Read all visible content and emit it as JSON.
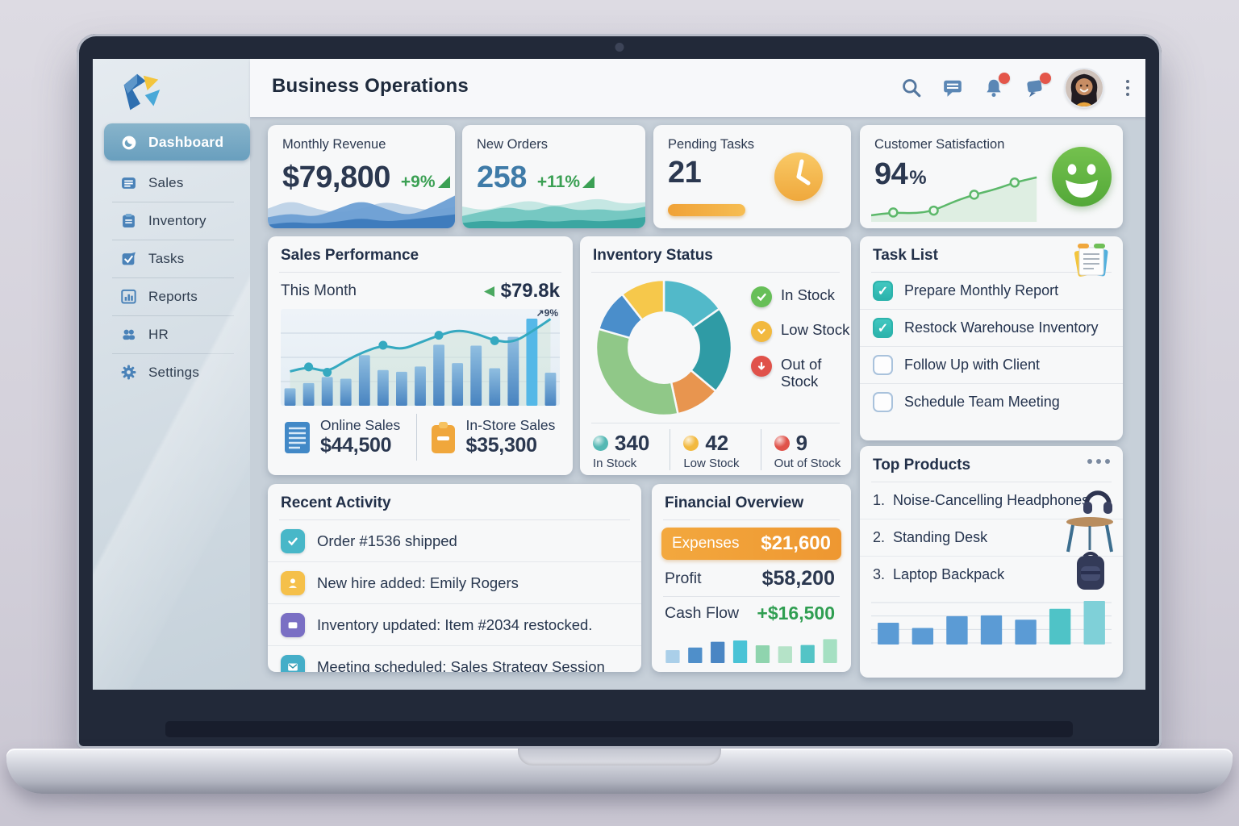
{
  "header": {
    "title": "Business Operations"
  },
  "sidebar": {
    "items": [
      {
        "label": "Dashboard",
        "icon": "dashboard-icon",
        "active": true
      },
      {
        "label": "Sales",
        "icon": "sales-icon",
        "active": false
      },
      {
        "label": "Inventory",
        "icon": "inventory-icon",
        "active": false
      },
      {
        "label": "Tasks",
        "icon": "tasks-icon",
        "active": false
      },
      {
        "label": "Reports",
        "icon": "reports-icon",
        "active": false
      },
      {
        "label": "HR",
        "icon": "hr-icon",
        "active": false
      },
      {
        "label": "Settings",
        "icon": "settings-icon",
        "active": false
      }
    ]
  },
  "kpis": {
    "revenue": {
      "label": "Monthly Revenue",
      "value": "$79,800",
      "delta": "+9%"
    },
    "orders": {
      "label": "New Orders",
      "value": "258",
      "delta": "+11%"
    },
    "pending": {
      "label": "Pending Tasks",
      "value": "21",
      "progress_pct": 56
    },
    "satisfaction": {
      "label": "Customer Satisfaction",
      "value": "94",
      "unit": "%"
    }
  },
  "sales_performance": {
    "title": "Sales Performance",
    "period_label": "This Month",
    "period_value": "$79.8k",
    "annotation": "9%",
    "online_label": "Online Sales",
    "online_value": "$44,500",
    "instore_label": "In-Store Sales",
    "instore_value": "$35,300"
  },
  "inventory_status": {
    "title": "Inventory Status",
    "legend": [
      {
        "label": "In Stock",
        "color": "#67bf58"
      },
      {
        "label": "Low Stock",
        "color": "#f2b93f"
      },
      {
        "label": "Out of Stock",
        "color": "#e0524a"
      }
    ],
    "stats": [
      {
        "value": "340",
        "label": "In Stock",
        "color": "#54b8b4"
      },
      {
        "value": "42",
        "label": "Low Stock",
        "color": "#f2b93f"
      },
      {
        "value": "9",
        "label": "Out of Stock",
        "color": "#e0524a"
      }
    ]
  },
  "task_list": {
    "title": "Task List",
    "items": [
      {
        "label": "Prepare Monthly Report",
        "done": true
      },
      {
        "label": "Restock Warehouse Inventory",
        "done": true
      },
      {
        "label": "Follow Up with Client",
        "done": false
      },
      {
        "label": "Schedule Team Meeting",
        "done": false
      }
    ]
  },
  "recent_activity": {
    "title": "Recent Activity",
    "items": [
      {
        "text": "Order #1536 shipped",
        "icon": "check-icon",
        "color": "#48b7c8"
      },
      {
        "text": "New hire added: Emily Rogers",
        "icon": "person-icon",
        "color": "#f5c04a"
      },
      {
        "text": "Inventory updated: Item #2034 restocked.",
        "icon": "box-icon",
        "color": "#7a6fc4"
      },
      {
        "text": "Meeting scheduled: Sales Strategy Session",
        "icon": "mail-icon",
        "color": "#45aec8"
      }
    ]
  },
  "financial": {
    "title": "Financial Overview",
    "expenses_label": "Expenses",
    "expenses_value": "$21,600",
    "profit_label": "Profit",
    "profit_value": "$58,200",
    "cashflow_label": "Cash Flow",
    "cashflow_value": "+$16,500"
  },
  "top_products": {
    "title": "Top Products",
    "items": [
      {
        "rank": "1.",
        "name": "Noise-Cancelling Headphones",
        "icon": "headphones-icon"
      },
      {
        "rank": "2.",
        "name": "Standing Desk",
        "icon": "desk-icon"
      },
      {
        "rank": "3.",
        "name": "Laptop Backpack",
        "icon": "backpack-icon"
      }
    ]
  },
  "chart_data": [
    {
      "id": "monthly-revenue-wave",
      "type": "area",
      "decorative": true,
      "layers": [
        {
          "color": "#b9cfe6",
          "opacity": 0.9,
          "points": [
            0.55,
            0.35,
            0.55,
            0.65,
            0.55,
            0.38,
            0.5,
            0.6,
            0.5
          ]
        },
        {
          "color": "#6d9fd4",
          "opacity": 0.95,
          "points": [
            0.75,
            0.65,
            0.75,
            0.55,
            0.35,
            0.55,
            0.72,
            0.52,
            0.25
          ]
        },
        {
          "color": "#3f7cbd",
          "opacity": 1,
          "points": [
            0.92,
            0.85,
            0.9,
            0.85,
            0.76,
            0.85,
            0.8,
            0.74,
            0.68
          ]
        }
      ]
    },
    {
      "id": "new-orders-wave",
      "type": "area",
      "decorative": true,
      "layers": [
        {
          "color": "#bfe4e0",
          "opacity": 0.9,
          "points": [
            0.5,
            0.6,
            0.45,
            0.35,
            0.5,
            0.4,
            0.3,
            0.45,
            0.4
          ]
        },
        {
          "color": "#72c6c0",
          "opacity": 0.95,
          "points": [
            0.72,
            0.6,
            0.5,
            0.62,
            0.45,
            0.6,
            0.55,
            0.62,
            0.5
          ]
        },
        {
          "color": "#3ba6a1",
          "opacity": 1,
          "points": [
            0.88,
            0.82,
            0.86,
            0.8,
            0.86,
            0.8,
            0.85,
            0.8,
            0.74
          ]
        }
      ]
    },
    {
      "id": "customer-satisfaction-trend",
      "type": "line",
      "color": "#5cb86a",
      "fill": "#5cb86a",
      "fill_opacity": 0.16,
      "points": [
        [
          0,
          0.86
        ],
        [
          0.12,
          0.8
        ],
        [
          0.24,
          0.82
        ],
        [
          0.34,
          0.76
        ],
        [
          0.46,
          0.55
        ],
        [
          0.56,
          0.42
        ],
        [
          0.68,
          0.3
        ],
        [
          0.78,
          0.16
        ],
        [
          0.9,
          0.05
        ]
      ],
      "dot_indices": [
        1,
        3,
        5,
        7
      ],
      "title": "Customer Satisfaction 94%"
    },
    {
      "id": "sales-performance-month",
      "type": "bar-line",
      "grid": true,
      "title": "Sales Performance — This Month $79.8k (+9%)",
      "ylim": [
        0,
        100
      ],
      "bars": [
        20,
        26,
        33,
        31,
        58,
        41,
        39,
        45,
        70,
        49,
        69,
        43,
        79,
        100,
        38
      ],
      "bar_color_top": "#8abbe0",
      "bar_color_bottom": "#3d7cbd",
      "highlight_bar": 13,
      "highlight_color": "#49b4e6",
      "line": [
        38,
        43,
        37,
        50,
        60,
        67,
        62,
        70,
        78,
        84,
        80,
        72,
        70,
        82,
        96
      ],
      "line_color": "#35a9c0",
      "dot_indices": [
        1,
        2,
        5,
        8,
        11
      ]
    },
    {
      "id": "inventory-donut",
      "type": "donut",
      "title": "Inventory Status: In Stock 340, Low Stock 42, Out of Stock 9",
      "segments": [
        {
          "color": "#52b9c9",
          "value": 55
        },
        {
          "color": "#2f9ba5",
          "value": 75
        },
        {
          "color": "#e8954f",
          "value": 38
        },
        {
          "color": "#90c888",
          "value": 118
        },
        {
          "color": "#4a8ecb",
          "value": 36
        },
        {
          "color": "#f6c84b",
          "value": 38
        }
      ]
    },
    {
      "id": "cash-flow-bars",
      "type": "minibar",
      "grid": false,
      "values": [
        40,
        48,
        66,
        70,
        55,
        52,
        56,
        74
      ],
      "colors": [
        "#aacfe9",
        "#4f8fca",
        "#4a86c4",
        "#49c3d6",
        "#8fd4ae",
        "#b5e3c8",
        "#54c4c6",
        "#a5e0c2"
      ]
    },
    {
      "id": "top-products-bars",
      "type": "minibar",
      "grid": true,
      "values": [
        50,
        38,
        65,
        67,
        57,
        82,
        100
      ],
      "colors": [
        "#5b9bd5",
        "#5b9bd5",
        "#5b9bd5",
        "#5b9bd5",
        "#5b9bd5",
        "#4fc3c7",
        "#7fd0d8"
      ]
    }
  ]
}
